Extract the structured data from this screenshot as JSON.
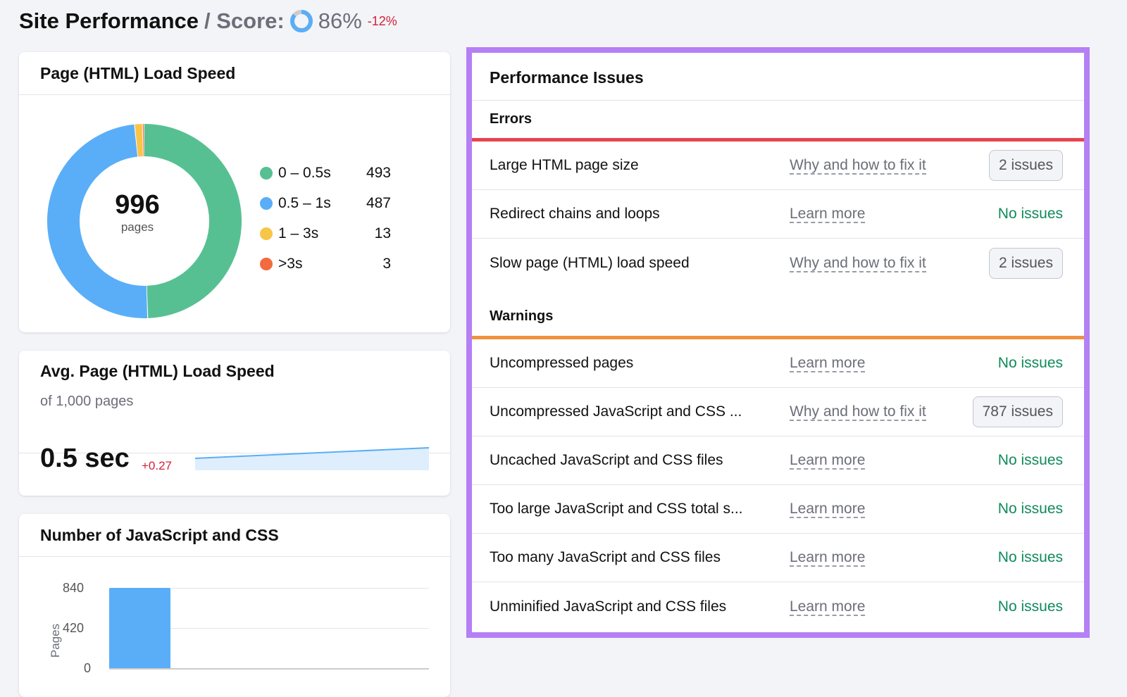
{
  "header": {
    "title": "Site Performance",
    "score_label": "/ Score:",
    "score": "86%",
    "score_value": 86,
    "score_delta": "-12%"
  },
  "load_speed": {
    "title": "Page (HTML) Load Speed",
    "total": "996",
    "total_label": "pages",
    "legend": [
      {
        "label": "0 – 0.5s",
        "value": 493,
        "color": "#57c093"
      },
      {
        "label": "0.5 – 1s",
        "value": 487,
        "color": "#5aaef7"
      },
      {
        "label": "1 – 3s",
        "value": 13,
        "color": "#f7c548"
      },
      {
        "label": ">3s",
        "value": 3,
        "color": "#f26a3d"
      }
    ]
  },
  "avg_speed": {
    "title": "Avg. Page (HTML) Load Speed",
    "subtitle": "of 1,000 pages",
    "value": "0.5 sec",
    "delta": "+0.27"
  },
  "js_css": {
    "title": "Number of JavaScript and CSS",
    "ylabel": "Pages",
    "ticks": [
      "840",
      "420",
      "0"
    ]
  },
  "chart_data": {
    "type": "bar",
    "title": "Number of JavaScript and CSS",
    "ylabel": "Pages",
    "ylim": [
      0,
      840
    ],
    "values": [
      840
    ]
  },
  "issues": {
    "title": "Performance Issues",
    "errors_label": "Errors",
    "warnings_label": "Warnings",
    "errors": [
      {
        "name": "Large HTML page size",
        "link": "Why and how to fix it",
        "status": "2 issues",
        "badge": true
      },
      {
        "name": "Redirect chains and loops",
        "link": "Learn more",
        "status": "No issues",
        "badge": false
      },
      {
        "name": "Slow page (HTML) load speed",
        "link": "Why and how to fix it",
        "status": "2 issues",
        "badge": true
      }
    ],
    "warnings": [
      {
        "name": "Uncompressed pages",
        "link": "Learn more",
        "status": "No issues",
        "badge": false
      },
      {
        "name": "Uncompressed JavaScript and CSS ...",
        "link": "Why and how to fix it",
        "status": "787 issues",
        "badge": true
      },
      {
        "name": "Uncached JavaScript and CSS files",
        "link": "Learn more",
        "status": "No issues",
        "badge": false
      },
      {
        "name": "Too large JavaScript and CSS total s...",
        "link": "Learn more",
        "status": "No issues",
        "badge": false
      },
      {
        "name": "Too many JavaScript and CSS files",
        "link": "Learn more",
        "status": "No issues",
        "badge": false
      },
      {
        "name": "Unminified JavaScript and CSS files",
        "link": "Learn more",
        "status": "No issues",
        "badge": false
      }
    ]
  }
}
